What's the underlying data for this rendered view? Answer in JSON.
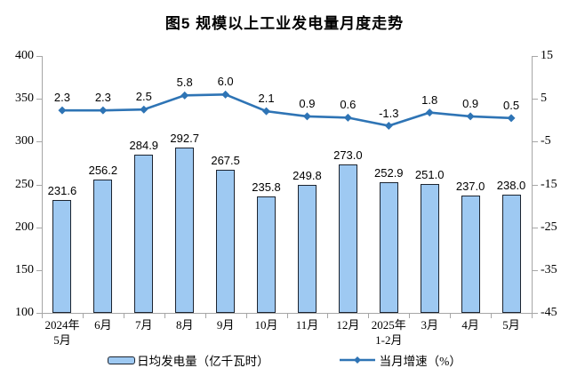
{
  "title": "图5  规模以上工业发电量月度走势",
  "colors": {
    "bar_fill": "#9EC9F2",
    "bar_border": "#1C2430",
    "line": "#2E74B5",
    "axis": "#A6A6A6",
    "text": "#000000"
  },
  "legend": {
    "bar_label": "日均发电量（亿千瓦时）",
    "line_label": "当月增速（%）"
  },
  "chart_data": {
    "type": "bar",
    "subtype": "bar+line combo, dual axis",
    "title": "图5  规模以上工业发电量月度走势",
    "categories": [
      "2024年\n5月",
      "6月",
      "7月",
      "8月",
      "9月",
      "10月",
      "11月",
      "12月",
      "2025年\n1-2月",
      "3月",
      "4月",
      "5月"
    ],
    "series": [
      {
        "name": "日均发电量（亿千瓦时）",
        "type": "bar",
        "axis": "left",
        "values": [
          231.6,
          256.2,
          284.9,
          292.7,
          267.5,
          235.8,
          249.8,
          273.0,
          252.9,
          251.0,
          237.0,
          238.0
        ],
        "labels": [
          "231.6",
          "256.2",
          "284.9",
          "292.7",
          "267.5",
          "235.8",
          "249.8",
          "273.0",
          "252.9",
          "251.0",
          "237.0",
          "238.0"
        ]
      },
      {
        "name": "当月增速（%）",
        "type": "line",
        "axis": "right",
        "values": [
          2.3,
          2.3,
          2.5,
          5.8,
          6.0,
          2.1,
          0.9,
          0.6,
          -1.3,
          1.8,
          0.9,
          0.5
        ],
        "labels": [
          "2.3",
          "2.3",
          "2.5",
          "5.8",
          "6.0",
          "2.1",
          "0.9",
          "0.6",
          "-1.3",
          "1.8",
          "0.9",
          "0.5"
        ]
      }
    ],
    "left_axis": {
      "min": 100,
      "max": 400,
      "step": 50,
      "ticks": [
        "400",
        "350",
        "300",
        "250",
        "200",
        "150",
        "100"
      ]
    },
    "right_axis": {
      "min": -45,
      "max": 15,
      "step": 10,
      "ticks": [
        "15",
        "5",
        "-5",
        "-15",
        "-25",
        "-35",
        "-45"
      ]
    },
    "grid": false,
    "legend_position": "bottom"
  }
}
